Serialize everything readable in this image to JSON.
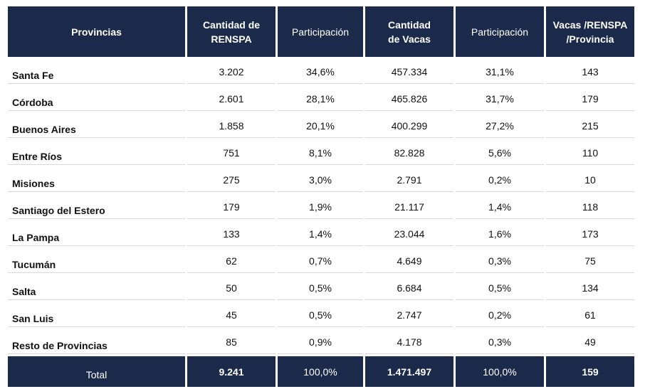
{
  "headers": [
    "Provincias",
    "Cantidad de RENSPA",
    "Participación",
    "Cantidad de Vacas",
    "Participación",
    "Vacas /RENSPA /Provincia"
  ],
  "rows": [
    [
      "Santa Fe",
      "3.202",
      "34,6%",
      "457.334",
      "31,1%",
      "143"
    ],
    [
      "Córdoba",
      "2.601",
      "28,1%",
      "465.826",
      "31,7%",
      "179"
    ],
    [
      "Buenos Aires",
      "1.858",
      "20,1%",
      "400.299",
      "27,2%",
      "215"
    ],
    [
      "Entre Ríos",
      "751",
      "8,1%",
      "82.828",
      "5,6%",
      "110"
    ],
    [
      "Misiones",
      "275",
      "3,0%",
      "2.791",
      "0,2%",
      "10"
    ],
    [
      "Santiago del Estero",
      "179",
      "1,9%",
      "21.117",
      "1,4%",
      "118"
    ],
    [
      "La Pampa",
      "133",
      "1,4%",
      "23.044",
      "1,6%",
      "173"
    ],
    [
      "Tucumán",
      "62",
      "0,7%",
      "4.649",
      "0,3%",
      "75"
    ],
    [
      "Salta",
      "50",
      "0,5%",
      "6.684",
      "0,5%",
      "134"
    ],
    [
      "San Luis",
      "45",
      "0,5%",
      "2.747",
      "0,2%",
      "61"
    ],
    [
      "Resto de Provincias",
      "85",
      "0,9%",
      "4.178",
      "0,3%",
      "49"
    ]
  ],
  "total": [
    "Total",
    "9.241",
    "100,0%",
    "1.471.497",
    "100,0%",
    "159"
  ],
  "colors": {
    "header_bg": "#1b2a4a",
    "header_text": "#ffffff",
    "body_text": "#111111"
  }
}
